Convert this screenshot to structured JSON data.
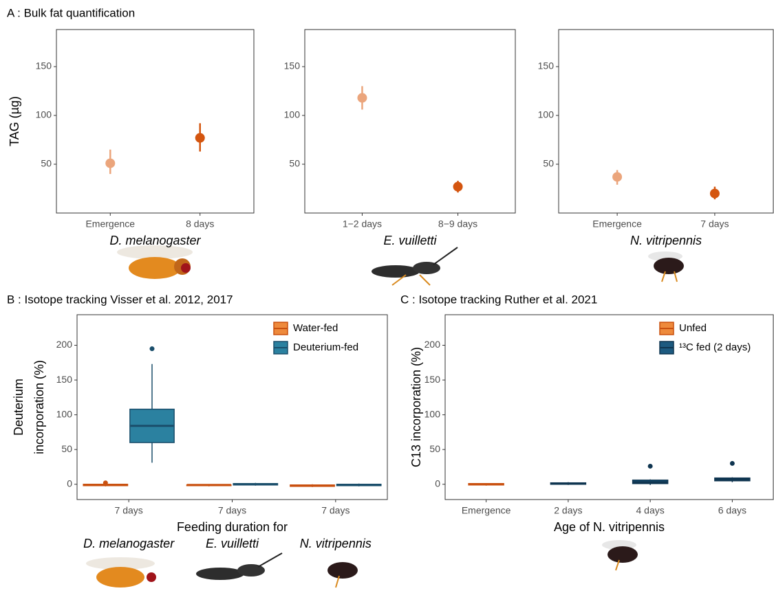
{
  "chart_data": [
    {
      "type": "pointrange",
      "title": "A : Bulk fat quantification",
      "ylabel": "TAG (µg)",
      "xlabel": "D. melanogaster",
      "categories": [
        "Emergence",
        "8 days"
      ],
      "values": [
        51,
        77
      ],
      "lower": [
        40,
        63
      ],
      "upper": [
        65,
        92
      ],
      "colors": [
        "#eba57c",
        "#d4550f"
      ],
      "ylim": [
        0,
        188
      ],
      "yticks": [
        50,
        100,
        150
      ]
    },
    {
      "type": "pointrange",
      "xlabel": "E. vuilletti",
      "categories": [
        "1−2 days",
        "8−9 days"
      ],
      "values": [
        118,
        27
      ],
      "lower": [
        106,
        21
      ],
      "upper": [
        130,
        33
      ],
      "colors": [
        "#eba57c",
        "#d4550f"
      ],
      "ylim": [
        0,
        188
      ],
      "yticks": [
        50,
        100,
        150
      ]
    },
    {
      "type": "pointrange",
      "xlabel": "N. vitripennis",
      "categories": [
        "Emergence",
        "7 days"
      ],
      "values": [
        37,
        20
      ],
      "lower": [
        29,
        14
      ],
      "upper": [
        44,
        27
      ],
      "colors": [
        "#eba57c",
        "#d4550f"
      ],
      "ylim": [
        0,
        188
      ],
      "yticks": [
        50,
        100,
        150
      ]
    },
    {
      "type": "box",
      "title": "B : Isotope tracking Visser et al. 2012, 2017",
      "ylabel": [
        "Deuterium",
        "incorporation (%)"
      ],
      "xlabel": "Feeding duration for",
      "categories": [
        "7 days",
        "7 days",
        "7 days"
      ],
      "group_labels": [
        "D. melanogaster",
        "E. vuilletti",
        "N. vitripennis"
      ],
      "dodge": true,
      "legend": "top-right",
      "ylim": [
        -22,
        244
      ],
      "yticks": [
        0,
        50,
        100,
        150,
        200
      ],
      "series": [
        {
          "name": "Water-fed",
          "color": "#ee8a3c",
          "line_color": "#c9500f",
          "whisker_low": [
            -3,
            -3,
            -4
          ],
          "q1": [
            -2,
            -2,
            -3
          ],
          "median": [
            -1,
            -1,
            -2
          ],
          "q3": [
            0,
            -1,
            -1
          ],
          "whisker_high": [
            1,
            0,
            0
          ],
          "outliers": [
            [
              2
            ],
            null,
            null
          ]
        },
        {
          "name": "Deuterium-fed",
          "color": "#2b81a0",
          "line_color": "#1a4e6b",
          "whisker_low": [
            31,
            -2,
            -3
          ],
          "q1": [
            60,
            -1,
            -2
          ],
          "median": [
            84,
            0,
            -1
          ],
          "q3": [
            108,
            1,
            0
          ],
          "whisker_high": [
            173,
            2,
            1
          ],
          "outliers": [
            [
              195
            ],
            null,
            null
          ]
        }
      ]
    },
    {
      "type": "box",
      "title": "C :  Isotope tracking Ruther et al. 2021",
      "ylabel": [
        "C13 incorporation (%)"
      ],
      "xlabel": "Age of N. vitripennis",
      "categories": [
        "Emergence",
        "2 days",
        "4 days",
        "6 days"
      ],
      "dodge": false,
      "legend": "top-right",
      "ylim": [
        -22,
        244
      ],
      "yticks": [
        0,
        50,
        100,
        150,
        200
      ],
      "series": [
        {
          "name": "Unfed",
          "color": "#ee8a3c",
          "line_color": "#c9500f",
          "whisker_low": [
            -2,
            null,
            null,
            null
          ],
          "q1": [
            -1,
            null,
            null,
            null
          ],
          "median": [
            0,
            null,
            null,
            null
          ],
          "q3": [
            1,
            null,
            null,
            null
          ],
          "whisker_high": [
            1,
            null,
            null,
            null
          ],
          "outliers": [
            null,
            null,
            null,
            null
          ]
        },
        {
          "name": "¹³C fed (2 days)",
          "color": "#1d5a80",
          "line_color": "#0f3550",
          "whisker_low": [
            null,
            -1,
            -1,
            3
          ],
          "q1": [
            null,
            0,
            1,
            5
          ],
          "median": [
            null,
            1,
            3,
            7
          ],
          "q3": [
            null,
            2,
            6,
            9
          ],
          "whisker_high": [
            null,
            3,
            7,
            10
          ],
          "outliers": [
            null,
            null,
            [
              26
            ],
            [
              30
            ]
          ]
        }
      ]
    }
  ]
}
